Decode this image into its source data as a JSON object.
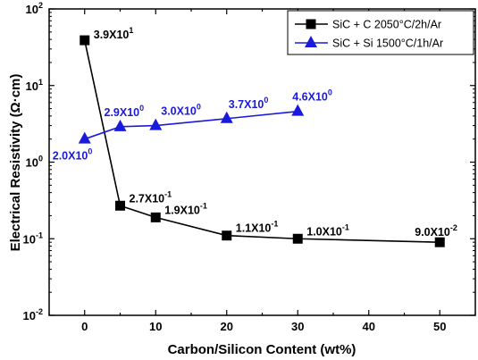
{
  "chart_data": {
    "type": "line",
    "title": "",
    "xlabel": "Carbon/Silicon Content (wt%)",
    "ylabel": "Electrical Resistivity (Ω·cm)",
    "xlim": [
      -5,
      55
    ],
    "ylim": [
      0.01,
      100
    ],
    "yscale": "log",
    "x_ticks": [
      0,
      10,
      20,
      30,
      40,
      50
    ],
    "y_ticks": [
      {
        "value": 0.01,
        "base": "10",
        "exp": "-2"
      },
      {
        "value": 0.1,
        "base": "10",
        "exp": "-1"
      },
      {
        "value": 1,
        "base": "10",
        "exp": "0"
      },
      {
        "value": 10,
        "base": "10",
        "exp": "1"
      },
      {
        "value": 100,
        "base": "10",
        "exp": "2"
      }
    ],
    "grid": false,
    "legend_position": "top-right",
    "series": [
      {
        "name": "SiC + C  2050°C/2h/Ar",
        "color": "#000000",
        "marker": "square",
        "x": [
          0,
          5,
          10,
          20,
          30,
          50
        ],
        "y": [
          39,
          0.27,
          0.19,
          0.11,
          0.1,
          0.09
        ],
        "labels": [
          {
            "base": "3.9X10",
            "exp": "1"
          },
          {
            "base": "2.7X10",
            "exp": "-1"
          },
          {
            "base": "1.9X10",
            "exp": "-1"
          },
          {
            "base": "1.1X10",
            "exp": "-1"
          },
          {
            "base": "1.0X10",
            "exp": "-1"
          },
          {
            "base": "9.0X10",
            "exp": "-2"
          }
        ]
      },
      {
        "name": "SiC + Si 1500°C/1h/Ar",
        "color": "#1a1adc",
        "marker": "triangle",
        "x": [
          0,
          5,
          10,
          20,
          30
        ],
        "y": [
          2.0,
          2.9,
          3.0,
          3.7,
          4.6
        ],
        "labels": [
          {
            "base": "2.0X10",
            "exp": "0"
          },
          {
            "base": "2.9X10",
            "exp": "0"
          },
          {
            "base": "3.0X10",
            "exp": "0"
          },
          {
            "base": "3.7X10",
            "exp": "0"
          },
          {
            "base": "4.6X10",
            "exp": "0"
          }
        ]
      }
    ]
  }
}
